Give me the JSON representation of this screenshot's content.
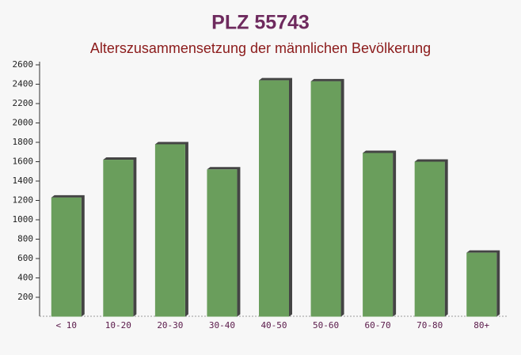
{
  "chart_data": {
    "type": "bar",
    "title": "PLZ 55743",
    "subtitle": "Alterszusammensetzung der männlichen Bevölkerung",
    "categories": [
      "< 10",
      "10-20",
      "20-30",
      "30-40",
      "40-50",
      "50-60",
      "60-70",
      "70-80",
      "80+"
    ],
    "values": [
      1230,
      1620,
      1780,
      1520,
      2440,
      2430,
      1690,
      1600,
      660
    ],
    "color": "#6a9e5c",
    "ylim": [
      0,
      2600
    ],
    "yticks": [
      200,
      400,
      600,
      800,
      1000,
      1200,
      1400,
      1600,
      1800,
      2000,
      2200,
      2400,
      2600
    ],
    "grid": false
  }
}
